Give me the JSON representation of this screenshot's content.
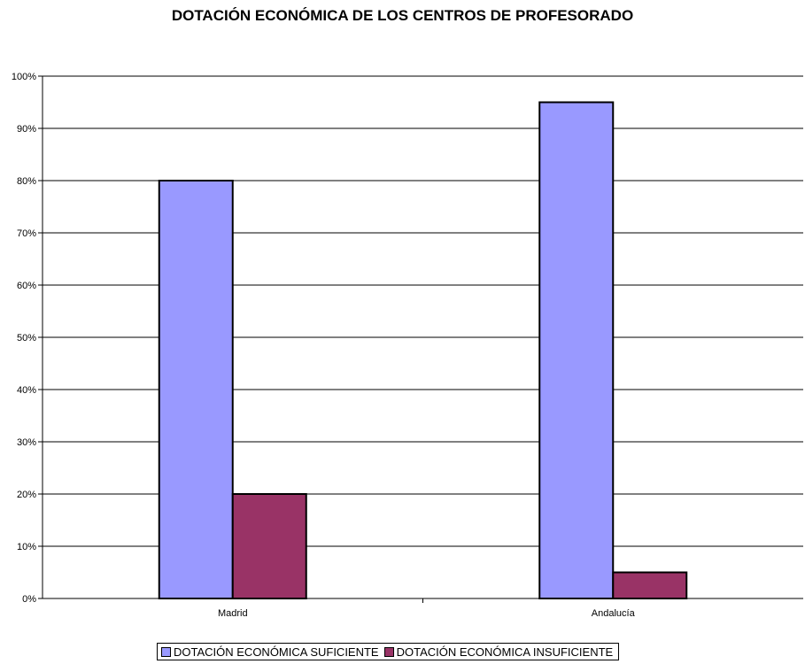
{
  "chart_data": {
    "type": "bar",
    "title": "DOTACIÓN ECONÓMICA DE LOS CENTROS DE PROFESORADO",
    "xlabel": "",
    "ylabel": "",
    "categories": [
      "Madrid",
      "Andalucía"
    ],
    "series": [
      {
        "name": "DOTACIÓN ECONÓMICA SUFICIENTE",
        "values": [
          80,
          95
        ],
        "color": "#9999ff"
      },
      {
        "name": "DOTACIÓN ECONÓMICA INSUFICIENTE",
        "values": [
          20,
          5
        ],
        "color": "#993366"
      }
    ],
    "ylim": [
      0,
      100
    ],
    "ytick_labels": [
      "0%",
      "10%",
      "20%",
      "30%",
      "40%",
      "50%",
      "60%",
      "70%",
      "80%",
      "90%",
      "100%"
    ],
    "grid": true,
    "legend_position": "bottom"
  }
}
